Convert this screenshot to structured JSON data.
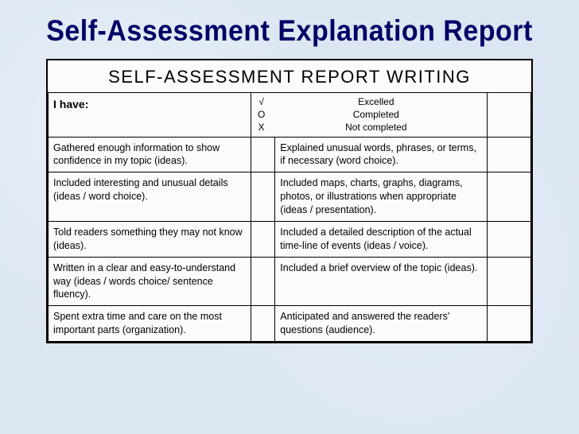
{
  "slide": {
    "title": "Self-Assessment Explanation Report"
  },
  "sheet": {
    "title": "SELF-ASSESSMENT REPORT WRITING",
    "header_left": "I have:",
    "legend": [
      {
        "symbol": "√",
        "label": "Excelled"
      },
      {
        "symbol": "O",
        "label": "Completed"
      },
      {
        "symbol": "X",
        "label": "Not completed"
      }
    ],
    "rows": [
      {
        "left": "Gathered enough information to show confidence in my topic (ideas).",
        "right": "Explained unusual words, phrases, or terms, if necessary (word choice)."
      },
      {
        "left": "Included interesting and unusual details (ideas / word choice).",
        "right": "Included maps, charts, graphs, diagrams, photos, or illustrations when appropriate (ideas / presentation)."
      },
      {
        "left": "Told readers something they may not know (ideas).",
        "right": "Included a detailed description of the actual time-line of events (ideas / voice)."
      },
      {
        "left": "Written in a clear and easy-to-understand way (ideas / words choice/ sentence fluency).",
        "right": "Included a brief overview of the topic (ideas)."
      },
      {
        "left": "Spent extra time and care on the most important parts (organization).",
        "right": "Anticipated and answered the readers' questions (audience)."
      }
    ]
  },
  "colors": {
    "background": "#dce6f2",
    "title_text": "#000066",
    "sheet_bg": "#fbfbf9",
    "border": "#000000"
  }
}
